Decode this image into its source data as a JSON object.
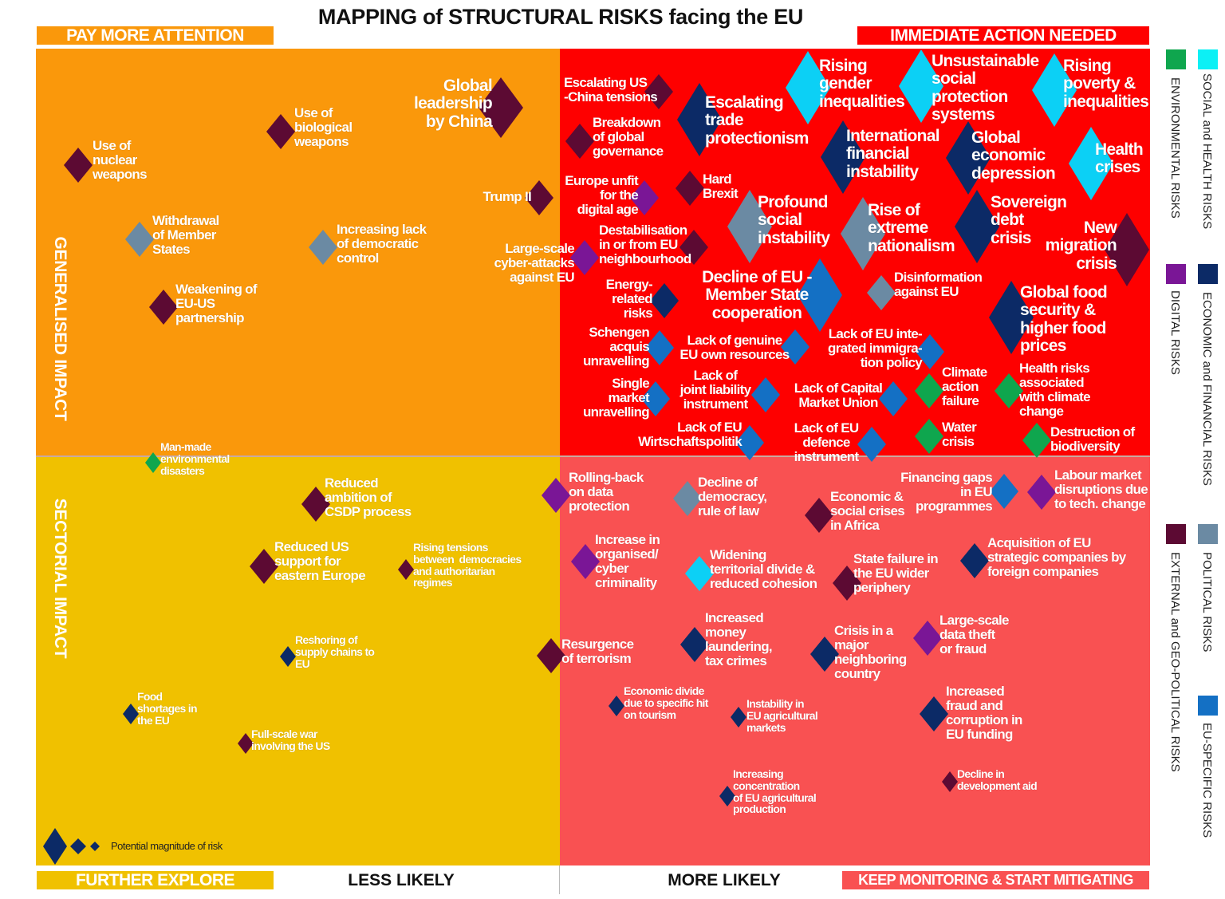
{
  "title": "MAPPING of STRUCTURAL RISKS facing the EU",
  "corner_tags": {
    "top_left": "PAY MORE ATTENTION",
    "top_right": "IMMEDIATE ACTION NEEDED",
    "bottom_left": "FURTHER EXPLORE",
    "bottom_right": "KEEP MONITORING & START MITIGATING"
  },
  "axes": {
    "x_less": "LESS LIKELY",
    "x_more": "MORE LIKELY",
    "y_top": "GENERALISED IMPACT",
    "y_bottom": "SECTORIAL IMPACT"
  },
  "colors": {
    "quadrant_top_left": "#fa980b",
    "quadrant_top_right": "#fe0000",
    "quadrant_bottom_left": "#f0c100",
    "quadrant_bottom_right": "#f95152"
  },
  "categories": {
    "env": {
      "label": "ENVIRONMENTAL RISKS",
      "color": "#0fa64e"
    },
    "soc": {
      "label": "SOCIAL and HEALTH RISKS",
      "color": "#0cd0f5"
    },
    "dig": {
      "label": "DIGITAL RISKS",
      "color": "#7a1696"
    },
    "eco": {
      "label": "ECONOMIC and FINANCIAL RISKS",
      "color": "#0c2a66"
    },
    "ext": {
      "label": "EXTERNAL and GEO-POLITICAL  RISKS",
      "color": "#5c0a33"
    },
    "pol": {
      "label": "POLITICAL RISKS",
      "color": "#6b8aa3"
    },
    "eu": {
      "label": "EU-SPECIFIC RISKS",
      "color": "#1470c4"
    }
  },
  "magnitude_legend": {
    "label": "Potential magnitude of risk",
    "levels": [
      "large",
      "medium",
      "small"
    ]
  },
  "risks": [
    {
      "label": "Use of\nnuclear\nweapons",
      "category": "ext",
      "magnitude": "medium"
    },
    {
      "label": "Use of\nbiological\nweapons",
      "category": "ext",
      "magnitude": "medium"
    },
    {
      "label": "Global\nleadership\nby China",
      "category": "ext",
      "magnitude": "large"
    },
    {
      "label": "Trump II",
      "category": "ext",
      "magnitude": "medium"
    },
    {
      "label": "Withdrawal\nof Member\nStates",
      "category": "pol",
      "magnitude": "medium"
    },
    {
      "label": "Increasing lack\nof democratic\ncontrol",
      "category": "pol",
      "magnitude": "medium"
    },
    {
      "label": "Weakening of\nEU-US\npartnership",
      "category": "ext",
      "magnitude": "medium"
    },
    {
      "label": "Large-scale\ncyber-attacks\nagainst EU",
      "category": "dig",
      "magnitude": "medium"
    },
    {
      "label": "Escalating US\n-China tensions",
      "category": "ext",
      "magnitude": "medium"
    },
    {
      "label": "Escalating\ntrade\nprotectionism",
      "category": "eco",
      "magnitude": "large"
    },
    {
      "label": "Breakdown\nof global\ngovernance",
      "category": "ext",
      "magnitude": "medium"
    },
    {
      "label": "Rising\ngender\ninequalities",
      "category": "soc",
      "magnitude": "large"
    },
    {
      "label": "Unsustainable\nsocial\nprotection\nsystems",
      "category": "soc",
      "magnitude": "large"
    },
    {
      "label": "Rising\npoverty &\ninequalities",
      "category": "soc",
      "magnitude": "large"
    },
    {
      "label": "International\nfinancial\ninstability",
      "category": "eco",
      "magnitude": "large"
    },
    {
      "label": "Global\neconomic\ndepression",
      "category": "eco",
      "magnitude": "large"
    },
    {
      "label": "Health\ncrises",
      "category": "soc",
      "magnitude": "large"
    },
    {
      "label": "Europe unfit\nfor the\ndigital age",
      "category": "dig",
      "magnitude": "medium"
    },
    {
      "label": "Hard\nBrexit",
      "category": "ext",
      "magnitude": "medium"
    },
    {
      "label": "Profound\nsocial\ninstability",
      "category": "pol",
      "magnitude": "large"
    },
    {
      "label": "Rise of\nextreme\nnationalism",
      "category": "pol",
      "magnitude": "large"
    },
    {
      "label": "Sovereign\ndebt\ncrisis",
      "category": "eco",
      "magnitude": "large"
    },
    {
      "label": "New\nmigration\ncrisis",
      "category": "ext",
      "magnitude": "large"
    },
    {
      "label": "Destabilisation\nin or from EU\nneighbourhood",
      "category": "ext",
      "magnitude": "medium"
    },
    {
      "label": "Decline of EU -\nMember State\ncooperation",
      "category": "eu",
      "magnitude": "large"
    },
    {
      "label": "Disinformation\nagainst EU",
      "category": "pol",
      "magnitude": "medium"
    },
    {
      "label": "Energy-\nrelated\nrisks",
      "category": "eco",
      "magnitude": "medium"
    },
    {
      "label": "Global food\nsecurity &\nhigher food\nprices",
      "category": "eco",
      "magnitude": "large"
    },
    {
      "label": "Schengen\nacquis\nunravelling",
      "category": "eu",
      "magnitude": "medium"
    },
    {
      "label": "Lack of genuine\nEU own resources",
      "category": "eu",
      "magnitude": "medium"
    },
    {
      "label": "Lack of EU inte-\ngrated immigra-\ntion policy",
      "category": "eu",
      "magnitude": "medium"
    },
    {
      "label": "Climate\naction\nfailure",
      "category": "env",
      "magnitude": "medium"
    },
    {
      "label": "Health risks\nassociated\nwith climate\nchange",
      "category": "env",
      "magnitude": "medium"
    },
    {
      "label": "Single\nmarket\nunravelling",
      "category": "eu",
      "magnitude": "medium"
    },
    {
      "label": "Lack of\njoint liability\ninstrument",
      "category": "eu",
      "magnitude": "medium"
    },
    {
      "label": "Lack of Capital\nMarket Union",
      "category": "eu",
      "magnitude": "medium"
    },
    {
      "label": "Lack of EU\nWirtschaftspolitik",
      "category": "eu",
      "magnitude": "medium"
    },
    {
      "label": "Lack of EU\ndefence\ninstrument",
      "category": "eu",
      "magnitude": "medium"
    },
    {
      "label": "Water\ncrisis",
      "category": "env",
      "magnitude": "medium"
    },
    {
      "label": "Destruction of\nbiodiversity",
      "category": "env",
      "magnitude": "medium"
    },
    {
      "label": "Man-made\nenvironmental\ndisasters",
      "category": "env",
      "magnitude": "small"
    },
    {
      "label": "Reduced\nambition of\nCSDP process",
      "category": "ext",
      "magnitude": "medium"
    },
    {
      "label": "Reduced US\nsupport for\neastern Europe",
      "category": "ext",
      "magnitude": "medium"
    },
    {
      "label": "Rising tensions\nbetween  democracies\nand authoritarian\nregimes",
      "category": "ext",
      "magnitude": "small"
    },
    {
      "label": "Reshoring of\nsupply chains to\nEU",
      "category": "eco",
      "magnitude": "small"
    },
    {
      "label": "Food\nshortages in\nthe EU",
      "category": "eco",
      "magnitude": "small"
    },
    {
      "label": "Full-scale war\ninvolving the US",
      "category": "ext",
      "magnitude": "small"
    },
    {
      "label": "Rolling-back\non data\nprotection",
      "category": "dig",
      "magnitude": "medium"
    },
    {
      "label": "Decline of\ndemocracy,\nrule of law",
      "category": "pol",
      "magnitude": "medium"
    },
    {
      "label": "Economic &\nsocial crises\nin Africa",
      "category": "ext",
      "magnitude": "medium"
    },
    {
      "label": "Financing gaps\nin EU\nprogrammes",
      "category": "eu",
      "magnitude": "medium"
    },
    {
      "label": "Labour market\ndisruptions due\nto tech. change",
      "category": "dig",
      "magnitude": "medium"
    },
    {
      "label": "Increase in\norganised/\ncyber\ncriminality",
      "category": "dig",
      "magnitude": "medium"
    },
    {
      "label": "Widening\nterritorial divide &\nreduced cohesion",
      "category": "soc",
      "magnitude": "medium"
    },
    {
      "label": "State failure in\nthe EU wider\nperiphery",
      "category": "ext",
      "magnitude": "medium"
    },
    {
      "label": "Acquisition of EU\nstrategic companies by\nforeign companies",
      "category": "eco",
      "magnitude": "medium"
    },
    {
      "label": "Resurgence\nof terrorism",
      "category": "ext",
      "magnitude": "medium"
    },
    {
      "label": "Increased\nmoney\nlaundering,\ntax crimes",
      "category": "eco",
      "magnitude": "medium"
    },
    {
      "label": "Crisis in a\nmajor\nneighboring\ncountry",
      "category": "eco",
      "magnitude": "medium"
    },
    {
      "label": "Large-scale\ndata theft\nor fraud",
      "category": "dig",
      "magnitude": "medium"
    },
    {
      "label": "Economic divide\ndue to specific hit\non tourism",
      "category": "eco",
      "magnitude": "small"
    },
    {
      "label": "Instability in\nEU agricultural\nmarkets",
      "category": "eco",
      "magnitude": "small"
    },
    {
      "label": "Increased\nfraud and\ncorruption in\nEU funding",
      "category": "eco",
      "magnitude": "medium"
    },
    {
      "label": "Increasing\nconcentration\nof EU agricultural\nproduction",
      "category": "eco",
      "magnitude": "small"
    },
    {
      "label": "Decline in\ndevelopment aid",
      "category": "ext",
      "magnitude": "small"
    }
  ]
}
